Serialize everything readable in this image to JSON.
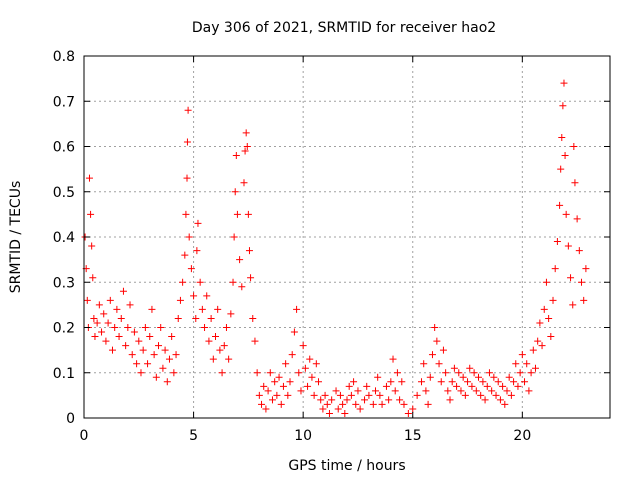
{
  "chart_data": {
    "type": "scatter",
    "title": "Day 306 of 2021, SRMTID for receiver hao2",
    "xlabel": "GPS time / hours",
    "ylabel": "SRMTID / TECUs",
    "xlim": [
      0,
      24
    ],
    "ylim": [
      0,
      0.8
    ],
    "xticks": [
      0,
      5,
      10,
      15,
      20
    ],
    "xtick_labels": [
      "0",
      "5",
      "10",
      "15",
      "20"
    ],
    "yticks": [
      0,
      0.1,
      0.2,
      0.3,
      0.4,
      0.5,
      0.6,
      0.7,
      0.8
    ],
    "ytick_labels": [
      "0",
      "0.1",
      "0.2",
      "0.3",
      "0.4",
      "0.5",
      "0.6",
      "0.7",
      "0.8"
    ],
    "grid": true,
    "marker": "+",
    "color": "#ff0000",
    "series": [
      {
        "name": "SRMTID",
        "points": [
          [
            0.05,
            0.4
          ],
          [
            0.1,
            0.33
          ],
          [
            0.15,
            0.26
          ],
          [
            0.2,
            0.2
          ],
          [
            0.25,
            0.53
          ],
          [
            0.3,
            0.45
          ],
          [
            0.35,
            0.38
          ],
          [
            0.4,
            0.31
          ],
          [
            0.45,
            0.22
          ],
          [
            0.5,
            0.18
          ],
          [
            0.6,
            0.21
          ],
          [
            0.7,
            0.25
          ],
          [
            0.8,
            0.19
          ],
          [
            0.9,
            0.23
          ],
          [
            1.0,
            0.17
          ],
          [
            1.1,
            0.21
          ],
          [
            1.2,
            0.26
          ],
          [
            1.3,
            0.15
          ],
          [
            1.4,
            0.2
          ],
          [
            1.5,
            0.24
          ],
          [
            1.6,
            0.18
          ],
          [
            1.7,
            0.22
          ],
          [
            1.8,
            0.28
          ],
          [
            1.9,
            0.16
          ],
          [
            2.0,
            0.2
          ],
          [
            2.1,
            0.25
          ],
          [
            2.2,
            0.14
          ],
          [
            2.3,
            0.19
          ],
          [
            2.4,
            0.12
          ],
          [
            2.5,
            0.17
          ],
          [
            2.6,
            0.1
          ],
          [
            2.7,
            0.15
          ],
          [
            2.8,
            0.2
          ],
          [
            2.9,
            0.12
          ],
          [
            3.0,
            0.18
          ],
          [
            3.1,
            0.24
          ],
          [
            3.2,
            0.14
          ],
          [
            3.3,
            0.09
          ],
          [
            3.4,
            0.16
          ],
          [
            3.5,
            0.2
          ],
          [
            3.6,
            0.11
          ],
          [
            3.7,
            0.15
          ],
          [
            3.8,
            0.08
          ],
          [
            3.9,
            0.13
          ],
          [
            4.0,
            0.18
          ],
          [
            4.1,
            0.1
          ],
          [
            4.2,
            0.14
          ],
          [
            4.3,
            0.22
          ],
          [
            4.4,
            0.26
          ],
          [
            4.5,
            0.3
          ],
          [
            4.6,
            0.36
          ],
          [
            4.65,
            0.45
          ],
          [
            4.7,
            0.53
          ],
          [
            4.72,
            0.61
          ],
          [
            4.75,
            0.68
          ],
          [
            4.8,
            0.4
          ],
          [
            4.9,
            0.33
          ],
          [
            5.0,
            0.27
          ],
          [
            5.1,
            0.22
          ],
          [
            5.15,
            0.37
          ],
          [
            5.2,
            0.43
          ],
          [
            5.3,
            0.3
          ],
          [
            5.4,
            0.24
          ],
          [
            5.5,
            0.2
          ],
          [
            5.6,
            0.27
          ],
          [
            5.7,
            0.17
          ],
          [
            5.8,
            0.22
          ],
          [
            5.9,
            0.13
          ],
          [
            6.0,
            0.18
          ],
          [
            6.1,
            0.24
          ],
          [
            6.2,
            0.15
          ],
          [
            6.3,
            0.1
          ],
          [
            6.4,
            0.16
          ],
          [
            6.5,
            0.2
          ],
          [
            6.6,
            0.13
          ],
          [
            6.7,
            0.23
          ],
          [
            6.8,
            0.3
          ],
          [
            6.85,
            0.4
          ],
          [
            6.9,
            0.5
          ],
          [
            6.95,
            0.58
          ],
          [
            7.0,
            0.45
          ],
          [
            7.1,
            0.35
          ],
          [
            7.2,
            0.29
          ],
          [
            7.3,
            0.52
          ],
          [
            7.35,
            0.59
          ],
          [
            7.4,
            0.63
          ],
          [
            7.45,
            0.6
          ],
          [
            7.5,
            0.45
          ],
          [
            7.55,
            0.37
          ],
          [
            7.6,
            0.31
          ],
          [
            7.7,
            0.22
          ],
          [
            7.8,
            0.17
          ],
          [
            7.9,
            0.1
          ],
          [
            8.0,
            0.05
          ],
          [
            8.1,
            0.03
          ],
          [
            8.2,
            0.07
          ],
          [
            8.3,
            0.02
          ],
          [
            8.4,
            0.06
          ],
          [
            8.5,
            0.1
          ],
          [
            8.6,
            0.04
          ],
          [
            8.7,
            0.08
          ],
          [
            8.8,
            0.05
          ],
          [
            8.9,
            0.09
          ],
          [
            9.0,
            0.03
          ],
          [
            9.1,
            0.07
          ],
          [
            9.2,
            0.12
          ],
          [
            9.3,
            0.05
          ],
          [
            9.4,
            0.08
          ],
          [
            9.5,
            0.14
          ],
          [
            9.6,
            0.19
          ],
          [
            9.7,
            0.24
          ],
          [
            9.8,
            0.1
          ],
          [
            9.9,
            0.06
          ],
          [
            10.0,
            0.16
          ],
          [
            10.1,
            0.11
          ],
          [
            10.2,
            0.07
          ],
          [
            10.3,
            0.13
          ],
          [
            10.4,
            0.09
          ],
          [
            10.5,
            0.05
          ],
          [
            10.6,
            0.12
          ],
          [
            10.7,
            0.08
          ],
          [
            10.8,
            0.04
          ],
          [
            10.9,
            0.02
          ],
          [
            11.0,
            0.05
          ],
          [
            11.1,
            0.03
          ],
          [
            11.2,
            0.01
          ],
          [
            11.3,
            0.04
          ],
          [
            11.5,
            0.06
          ],
          [
            11.6,
            0.02
          ],
          [
            11.7,
            0.05
          ],
          [
            11.8,
            0.03
          ],
          [
            11.9,
            0.01
          ],
          [
            12.0,
            0.04
          ],
          [
            12.1,
            0.07
          ],
          [
            12.2,
            0.05
          ],
          [
            12.3,
            0.08
          ],
          [
            12.4,
            0.03
          ],
          [
            12.5,
            0.06
          ],
          [
            12.6,
            0.02
          ],
          [
            12.8,
            0.04
          ],
          [
            12.9,
            0.07
          ],
          [
            13.0,
            0.05
          ],
          [
            13.2,
            0.03
          ],
          [
            13.3,
            0.06
          ],
          [
            13.4,
            0.09
          ],
          [
            13.5,
            0.05
          ],
          [
            13.6,
            0.03
          ],
          [
            13.8,
            0.07
          ],
          [
            13.9,
            0.04
          ],
          [
            14.0,
            0.08
          ],
          [
            14.1,
            0.13
          ],
          [
            14.2,
            0.06
          ],
          [
            14.3,
            0.1
          ],
          [
            14.4,
            0.04
          ],
          [
            14.5,
            0.08
          ],
          [
            14.6,
            0.03
          ],
          [
            14.8,
            0.01
          ],
          [
            15.0,
            0.02
          ],
          [
            15.2,
            0.05
          ],
          [
            15.4,
            0.08
          ],
          [
            15.5,
            0.12
          ],
          [
            15.6,
            0.06
          ],
          [
            15.7,
            0.03
          ],
          [
            15.8,
            0.09
          ],
          [
            15.9,
            0.14
          ],
          [
            16.0,
            0.2
          ],
          [
            16.1,
            0.17
          ],
          [
            16.2,
            0.12
          ],
          [
            16.3,
            0.08
          ],
          [
            16.4,
            0.15
          ],
          [
            16.5,
            0.1
          ],
          [
            16.6,
            0.06
          ],
          [
            16.7,
            0.04
          ],
          [
            16.8,
            0.08
          ],
          [
            16.9,
            0.11
          ],
          [
            17.0,
            0.07
          ],
          [
            17.1,
            0.1
          ],
          [
            17.2,
            0.06
          ],
          [
            17.3,
            0.09
          ],
          [
            17.4,
            0.05
          ],
          [
            17.5,
            0.08
          ],
          [
            17.6,
            0.11
          ],
          [
            17.7,
            0.07
          ],
          [
            17.8,
            0.1
          ],
          [
            17.9,
            0.06
          ],
          [
            18.0,
            0.09
          ],
          [
            18.1,
            0.05
          ],
          [
            18.2,
            0.08
          ],
          [
            18.3,
            0.04
          ],
          [
            18.4,
            0.07
          ],
          [
            18.5,
            0.1
          ],
          [
            18.6,
            0.06
          ],
          [
            18.7,
            0.09
          ],
          [
            18.8,
            0.05
          ],
          [
            18.9,
            0.08
          ],
          [
            19.0,
            0.04
          ],
          [
            19.1,
            0.07
          ],
          [
            19.2,
            0.03
          ],
          [
            19.3,
            0.06
          ],
          [
            19.4,
            0.09
          ],
          [
            19.5,
            0.05
          ],
          [
            19.6,
            0.08
          ],
          [
            19.7,
            0.12
          ],
          [
            19.8,
            0.07
          ],
          [
            19.9,
            0.1
          ],
          [
            20.0,
            0.14
          ],
          [
            20.1,
            0.08
          ],
          [
            20.2,
            0.12
          ],
          [
            20.3,
            0.06
          ],
          [
            20.4,
            0.1
          ],
          [
            20.5,
            0.15
          ],
          [
            20.6,
            0.11
          ],
          [
            20.7,
            0.17
          ],
          [
            20.8,
            0.21
          ],
          [
            20.9,
            0.16
          ],
          [
            21.0,
            0.24
          ],
          [
            21.1,
            0.3
          ],
          [
            21.2,
            0.22
          ],
          [
            21.3,
            0.18
          ],
          [
            21.4,
            0.26
          ],
          [
            21.5,
            0.33
          ],
          [
            21.6,
            0.39
          ],
          [
            21.7,
            0.47
          ],
          [
            21.75,
            0.55
          ],
          [
            21.8,
            0.62
          ],
          [
            21.85,
            0.69
          ],
          [
            21.9,
            0.74
          ],
          [
            21.95,
            0.58
          ],
          [
            22.0,
            0.45
          ],
          [
            22.1,
            0.38
          ],
          [
            22.2,
            0.31
          ],
          [
            22.3,
            0.25
          ],
          [
            22.35,
            0.6
          ],
          [
            22.4,
            0.52
          ],
          [
            22.5,
            0.44
          ],
          [
            22.6,
            0.37
          ],
          [
            22.7,
            0.3
          ],
          [
            22.8,
            0.26
          ],
          [
            22.9,
            0.33
          ]
        ]
      }
    ]
  }
}
